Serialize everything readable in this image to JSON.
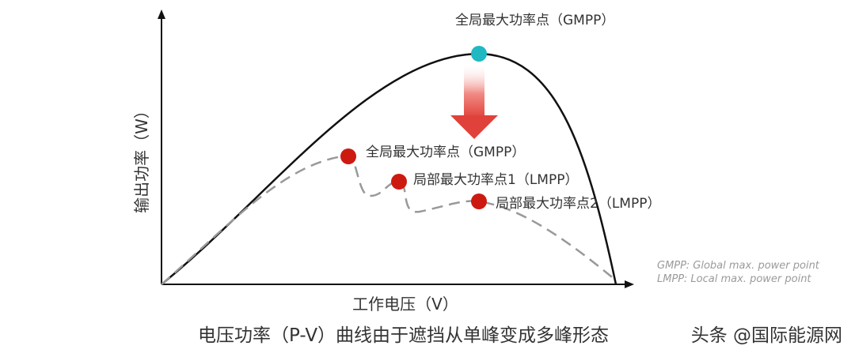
{
  "axes": {
    "y_label": "输出功率（W）",
    "x_label": "工作电压（V）"
  },
  "annotations": {
    "gmpp_top": "全局最大功率点（GMPP）",
    "gmpp_shaded": "全局最大功率点（GMPP）",
    "lmpp1": "局部最大功率点1（LMPP）",
    "lmpp2": "局部最大功率点2（LMPP）"
  },
  "legend_notes": {
    "gmpp": "GMPP: Global max. power point",
    "lmpp": "LMPP: Local max. power point"
  },
  "caption": "电压功率（P-V）曲线由于遮挡从单峰变成多峰形态",
  "watermark": "头条 @国际能源网",
  "colors": {
    "unshaded_curve": "#111111",
    "shaded_curve": "#999999",
    "gmpp_marker": "#1fb8c3",
    "peak_markers": "#cc1a10",
    "arrow": "#e0413a"
  }
}
